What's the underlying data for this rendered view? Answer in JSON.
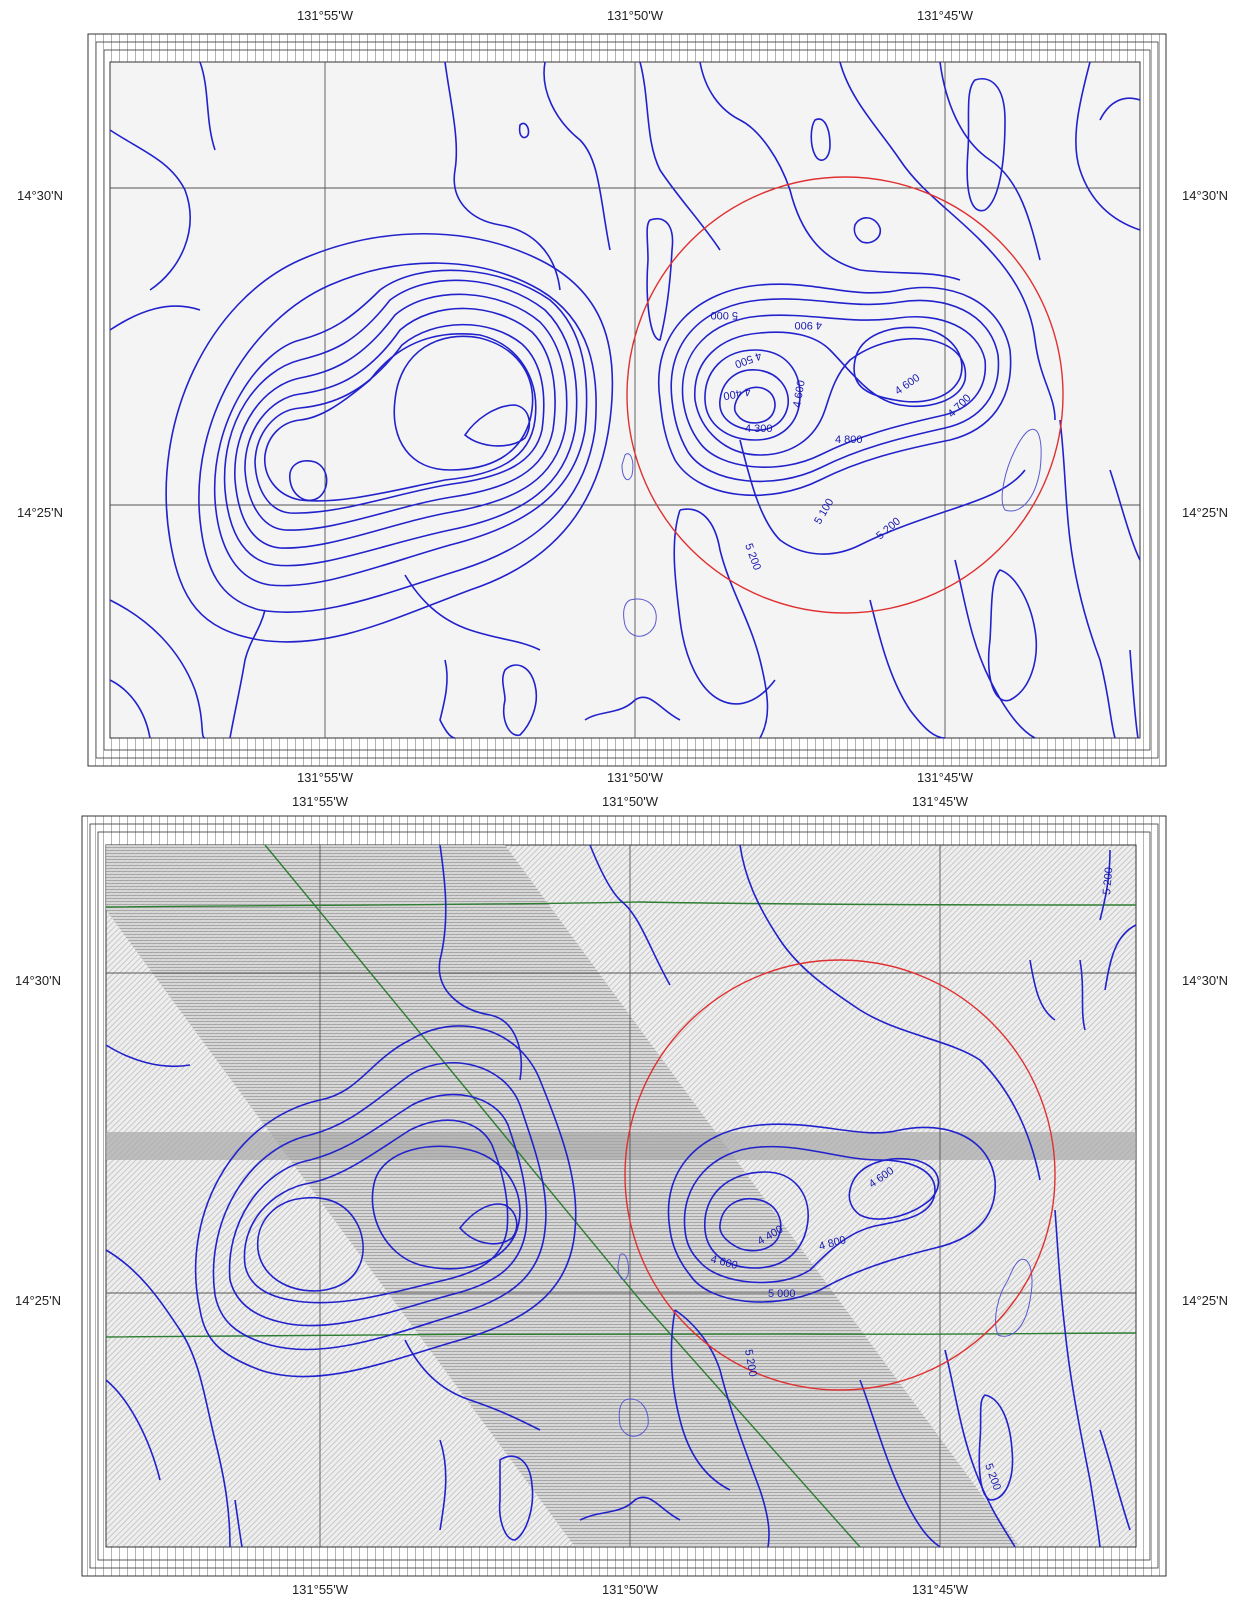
{
  "maps": [
    {
      "id": "top",
      "lon_labels_top": [
        "131°55'W",
        "131°50'W",
        "131°45'W"
      ],
      "lon_labels_bottom": [
        "131°55'W",
        "131°50'W",
        "131°45'W"
      ],
      "lat_labels": [
        "14°30'N",
        "14°25'N"
      ],
      "contour_labels": [
        "5 000",
        "4 900",
        "4 500",
        "4 400",
        "4 300",
        "4 600",
        "4 800",
        "4 600",
        "4 700",
        "5 100",
        "5 200",
        "5 200"
      ]
    },
    {
      "id": "bottom",
      "lon_labels_top": [
        "131°55'W",
        "131°50'W",
        "131°45'W"
      ],
      "lon_labels_bottom": [
        "131°55'W",
        "131°50'W",
        "131°45'W"
      ],
      "lat_labels": [
        "14°30'N",
        "14°25'N"
      ],
      "contour_labels": [
        "5 200",
        "4 400",
        "4 600",
        "4 800",
        "4 600",
        "5 000",
        "5 200",
        "5 200"
      ]
    }
  ],
  "colors": {
    "contour": "#2222cc",
    "study_circle": "#e03030",
    "track_line": "#2e7d32",
    "grid": "#333333",
    "shading": "#bdbdbd"
  }
}
